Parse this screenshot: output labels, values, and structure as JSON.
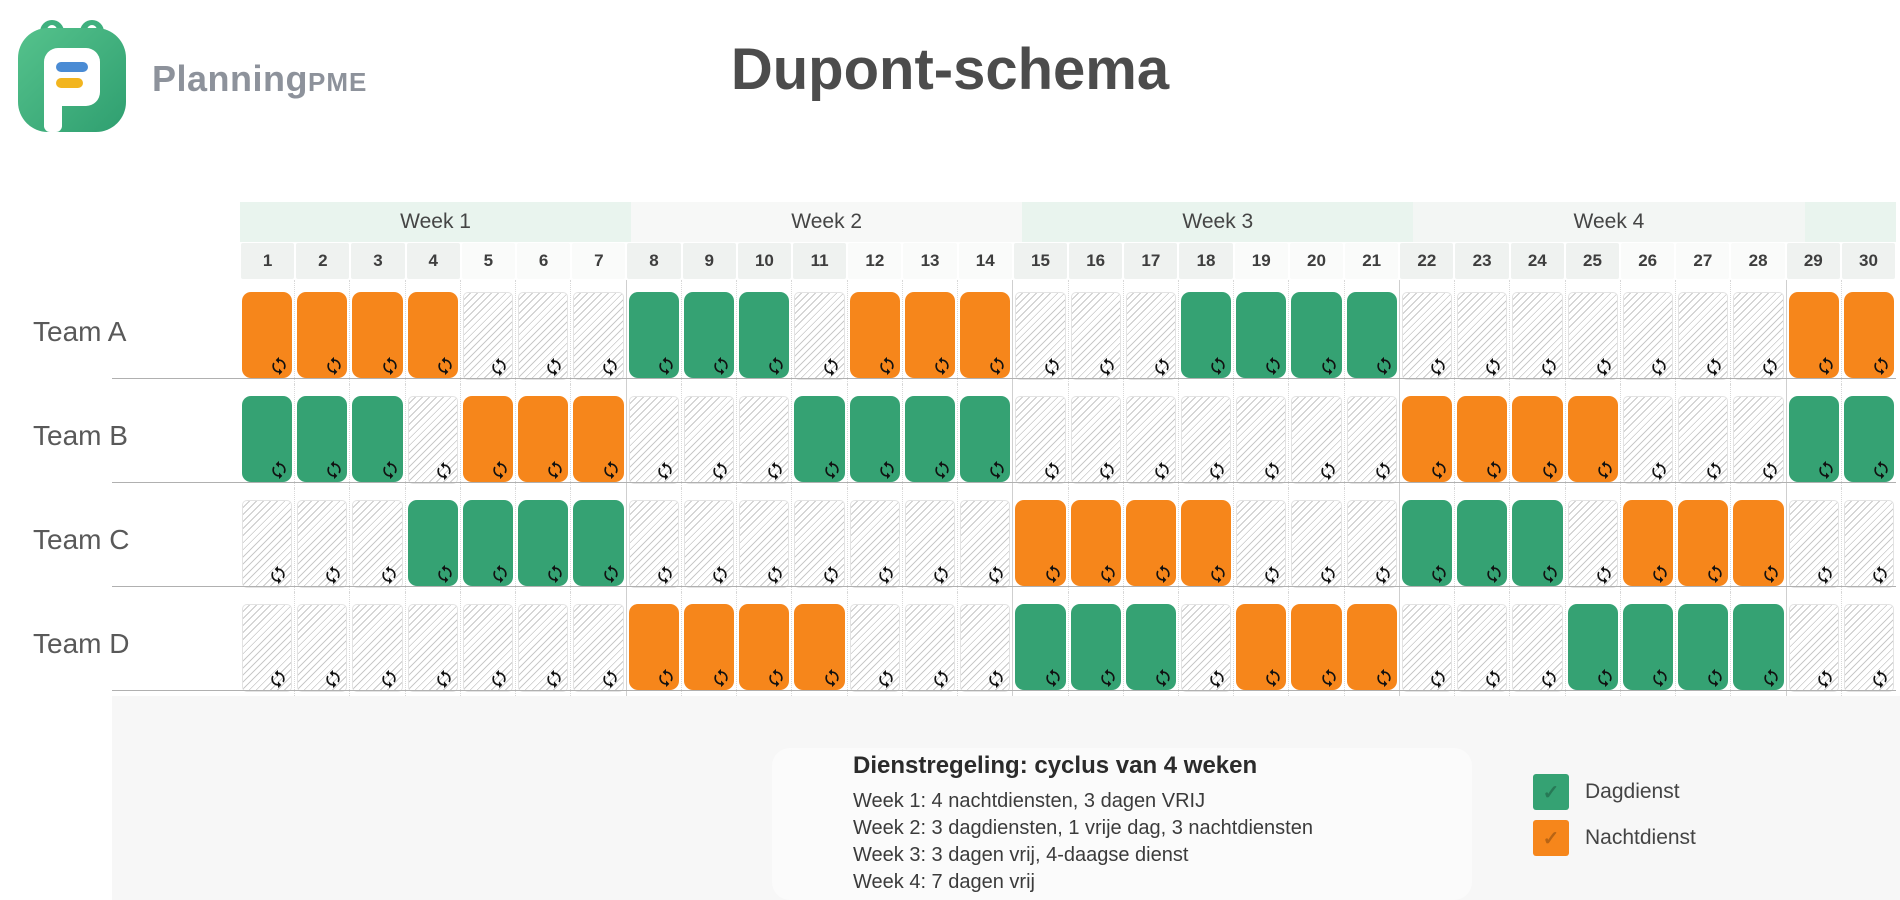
{
  "header": {
    "brand_main": "Planning",
    "brand_suffix": "PME",
    "title": "Dupont-schema"
  },
  "colors": {
    "dagdienst": "#35a273",
    "nachtdienst": "#f6861b",
    "icon": "#111111"
  },
  "schedule": {
    "week_headers": [
      {
        "label": "Week 1",
        "span": 7
      },
      {
        "label": "Week 2",
        "span": 7
      },
      {
        "label": "Week 3",
        "span": 7
      },
      {
        "label": "Week 4",
        "span": 7
      },
      {
        "label": "",
        "span": 2
      }
    ],
    "days": [
      1,
      2,
      3,
      4,
      5,
      6,
      7,
      8,
      9,
      10,
      11,
      12,
      13,
      14,
      15,
      16,
      17,
      18,
      19,
      20,
      21,
      22,
      23,
      24,
      25,
      26,
      27,
      28,
      29,
      30
    ],
    "shift_types": {
      "D": "Dagdienst",
      "N": "Nachtdienst",
      "F": "Vrij"
    },
    "cell_icon": "repeat-icon",
    "teams": [
      {
        "name": "Team A",
        "shifts": "NNNNFFFDDDFNNNFFFDDDDFFFFFFFNN"
      },
      {
        "name": "Team B",
        "shifts": "DDDFNNNFFFDDDDFFFFFFFNNNNFFFDD"
      },
      {
        "name": "Team C",
        "shifts": "FFFDDDDFFFFFFFNNNNFFFDDDFNNNFF"
      },
      {
        "name": "Team D",
        "shifts": "FFFFFFFNNNNFFFDDDFNNNFFFDDDDFF"
      }
    ]
  },
  "notes": {
    "title": "Dienstregeling: cyclus van 4 weken",
    "lines": [
      "Week 1: 4 nachtdiensten, 3 dagen VRIJ",
      "Week 2: 3 dagdiensten, 1 vrije dag, 3 nachtdiensten",
      "Week 3: 3 dagen vrij, 4-daagse dienst",
      "Week 4: 7 dagen vrij"
    ]
  },
  "legend": [
    {
      "label": "Dagdienst",
      "type": "D"
    },
    {
      "label": "Nachtdienst",
      "type": "N"
    }
  ]
}
